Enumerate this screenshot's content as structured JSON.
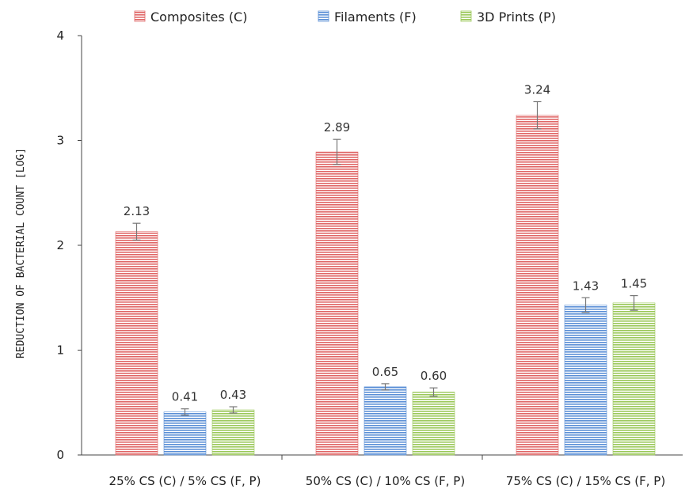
{
  "chart_data": {
    "type": "bar",
    "title": "",
    "xlabel": "",
    "ylabel": "REDUCTION OF BACTERIAL COUNT [LOG]",
    "ylim": [
      0,
      4
    ],
    "yticks": [
      0,
      1,
      2,
      3,
      4
    ],
    "grid": false,
    "legend_position": "top-center",
    "categories": [
      "25% CS (C) / 5% CS (F, P)",
      "50% CS (C)  / 10% CS (F, P)",
      "75% CS (C) / 15% CS (F, P)"
    ],
    "series": [
      {
        "name": "Composites (C)",
        "color": "#e06666",
        "values": [
          2.13,
          2.89,
          3.24
        ],
        "error": [
          0.08,
          0.12,
          0.13
        ],
        "labels": [
          "2.13",
          "2.89",
          "3.24"
        ]
      },
      {
        "name": "Filaments (F)",
        "color": "#5b8fd6",
        "values": [
          0.41,
          0.65,
          1.43
        ],
        "error": [
          0.03,
          0.03,
          0.07
        ],
        "labels": [
          "0.41",
          "0.65",
          "1.43"
        ]
      },
      {
        "name": "3D Prints (P)",
        "color": "#9bc85a",
        "values": [
          0.43,
          0.6,
          1.45
        ],
        "error": [
          0.03,
          0.04,
          0.07
        ],
        "labels": [
          "0.43",
          "0.60",
          "1.45"
        ]
      }
    ]
  }
}
